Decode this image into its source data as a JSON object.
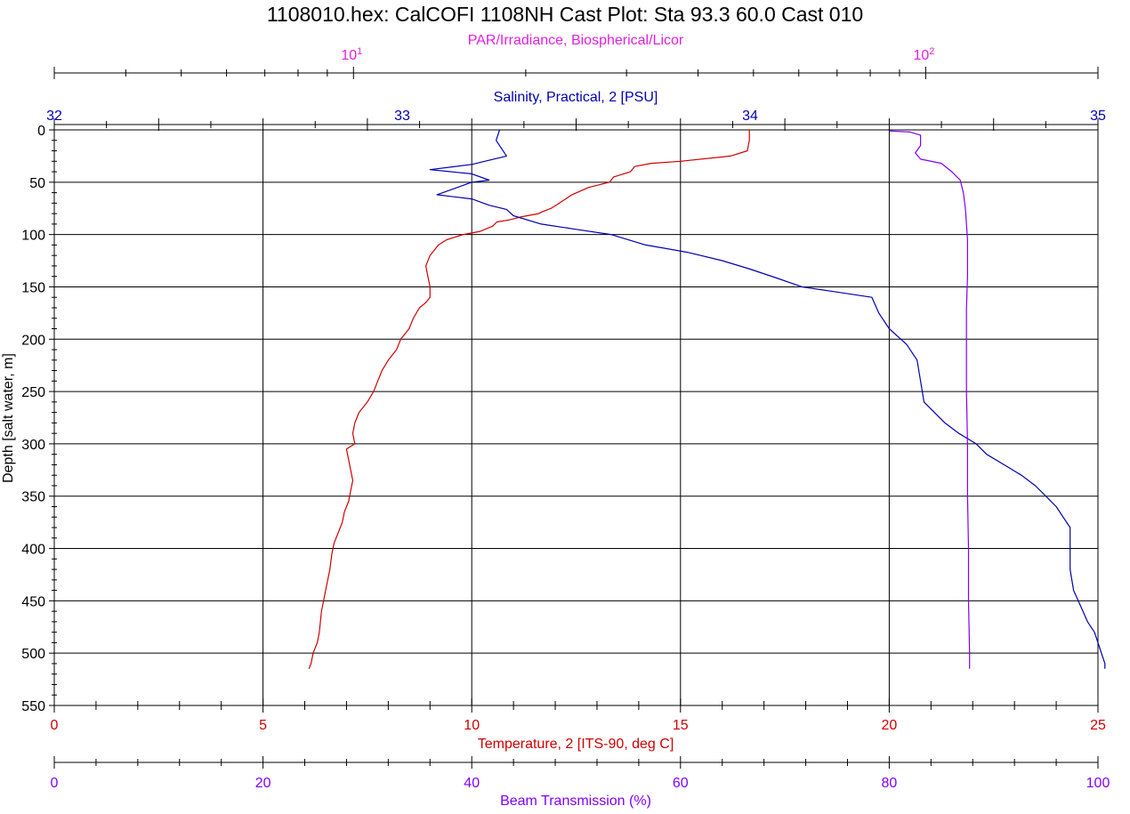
{
  "colors": {
    "par": "#e020e0",
    "salinity": "#0000b0",
    "temperature": "#d00000",
    "beam": "#8000ff",
    "grid": "#000000",
    "text": "#000000"
  },
  "chart_data": {
    "type": "line",
    "title": "1108010.hex: CalCOFI 1108NH Cast Plot:  Sta 93.3 60.0 Cast 010",
    "ylabel": "Depth [salt water, m]",
    "ylim": [
      0,
      550
    ],
    "y_inverted": true,
    "y_ticks": [
      "0",
      "50",
      "100",
      "150",
      "200",
      "250",
      "300",
      "350",
      "400",
      "450",
      "500",
      "550"
    ],
    "grid": true,
    "axes": {
      "par": {
        "label": "PAR/Irradiance, Biospherical/Licor",
        "scale": "log",
        "range": [
          3,
          200
        ],
        "ticks": [
          {
            "base": "10",
            "exp": "1",
            "value": 10
          },
          {
            "base": "10",
            "exp": "2",
            "value": 100
          }
        ],
        "position": "top"
      },
      "salinity": {
        "label": "Salinity, Practical, 2 [PSU]",
        "range": [
          32,
          35
        ],
        "ticks": [
          "32",
          "33",
          "34",
          "35"
        ],
        "position": "top"
      },
      "temperature": {
        "label": "Temperature, 2 [ITS-90, deg C]",
        "range": [
          0,
          25
        ],
        "ticks": [
          "0",
          "5",
          "10",
          "15",
          "20",
          "25"
        ],
        "position": "bottom"
      },
      "beam": {
        "label": "Beam Transmission (%)",
        "range": [
          0,
          100
        ],
        "ticks": [
          "0",
          "20",
          "40",
          "60",
          "80",
          "100"
        ],
        "position": "bottom"
      }
    },
    "series": [
      {
        "axis": "temperature",
        "color": "#d00000",
        "points": [
          [
            16.65,
            0
          ],
          [
            16.65,
            10
          ],
          [
            16.6,
            20
          ],
          [
            16.2,
            25
          ],
          [
            15.0,
            30
          ],
          [
            14.3,
            32
          ],
          [
            13.9,
            35
          ],
          [
            13.8,
            40
          ],
          [
            13.4,
            45
          ],
          [
            13.3,
            50
          ],
          [
            12.8,
            55
          ],
          [
            12.4,
            62
          ],
          [
            12.1,
            70
          ],
          [
            11.9,
            75
          ],
          [
            11.7,
            78
          ],
          [
            11.6,
            80
          ],
          [
            11.2,
            83
          ],
          [
            10.9,
            86
          ],
          [
            10.6,
            88
          ],
          [
            10.5,
            92
          ],
          [
            10.2,
            97
          ],
          [
            9.8,
            100
          ],
          [
            9.4,
            105
          ],
          [
            9.2,
            110
          ],
          [
            9.0,
            120
          ],
          [
            8.9,
            130
          ],
          [
            8.95,
            140
          ],
          [
            9.0,
            150
          ],
          [
            9.0,
            160
          ],
          [
            8.9,
            165
          ],
          [
            8.75,
            170
          ],
          [
            8.6,
            180
          ],
          [
            8.5,
            190
          ],
          [
            8.3,
            200
          ],
          [
            8.2,
            210
          ],
          [
            8.0,
            220
          ],
          [
            7.85,
            230
          ],
          [
            7.75,
            240
          ],
          [
            7.65,
            250
          ],
          [
            7.5,
            260
          ],
          [
            7.3,
            270
          ],
          [
            7.2,
            280
          ],
          [
            7.15,
            290
          ],
          [
            7.2,
            300
          ],
          [
            7.0,
            305
          ],
          [
            7.05,
            315
          ],
          [
            7.1,
            325
          ],
          [
            7.15,
            335
          ],
          [
            7.1,
            345
          ],
          [
            7.05,
            355
          ],
          [
            6.95,
            365
          ],
          [
            6.9,
            375
          ],
          [
            6.8,
            385
          ],
          [
            6.7,
            395
          ],
          [
            6.65,
            405
          ],
          [
            6.6,
            420
          ],
          [
            6.5,
            440
          ],
          [
            6.4,
            460
          ],
          [
            6.35,
            480
          ],
          [
            6.3,
            490
          ],
          [
            6.2,
            500
          ],
          [
            6.15,
            510
          ],
          [
            6.1,
            515
          ]
        ]
      },
      {
        "axis": "salinity",
        "color": "#0000b0",
        "points": [
          [
            33.28,
            0
          ],
          [
            33.27,
            10
          ],
          [
            33.3,
            25
          ],
          [
            33.2,
            33
          ],
          [
            33.08,
            38
          ],
          [
            33.2,
            42
          ],
          [
            33.25,
            48
          ],
          [
            33.2,
            50
          ],
          [
            33.15,
            56
          ],
          [
            33.1,
            62
          ],
          [
            33.2,
            66
          ],
          [
            33.25,
            72
          ],
          [
            33.3,
            76
          ],
          [
            33.32,
            82
          ],
          [
            33.4,
            90
          ],
          [
            33.5,
            95
          ],
          [
            33.6,
            100
          ],
          [
            33.7,
            110
          ],
          [
            33.82,
            117
          ],
          [
            33.92,
            125
          ],
          [
            34.0,
            133
          ],
          [
            34.08,
            142
          ],
          [
            34.15,
            150
          ],
          [
            34.25,
            155
          ],
          [
            34.35,
            160
          ],
          [
            34.37,
            175
          ],
          [
            34.4,
            190
          ],
          [
            34.45,
            205
          ],
          [
            34.48,
            220
          ],
          [
            34.49,
            240
          ],
          [
            34.5,
            260
          ],
          [
            34.56,
            280
          ],
          [
            34.6,
            290
          ],
          [
            34.65,
            300
          ],
          [
            34.68,
            310
          ],
          [
            34.73,
            320
          ],
          [
            34.78,
            330
          ],
          [
            34.82,
            340
          ],
          [
            34.85,
            350
          ],
          [
            34.88,
            360
          ],
          [
            34.9,
            370
          ],
          [
            34.92,
            380
          ],
          [
            34.92,
            400
          ],
          [
            34.92,
            420
          ],
          [
            34.93,
            440
          ],
          [
            34.95,
            455
          ],
          [
            34.97,
            470
          ],
          [
            34.99,
            480
          ],
          [
            35.0,
            490
          ],
          [
            35.01,
            500
          ],
          [
            35.02,
            510
          ],
          [
            35.02,
            515
          ]
        ]
      },
      {
        "axis": "beam",
        "color": "#8000ff",
        "points": [
          [
            80.0,
            1
          ],
          [
            82.0,
            2
          ],
          [
            83.0,
            5
          ],
          [
            83.0,
            15
          ],
          [
            82.5,
            22
          ],
          [
            83.0,
            28
          ],
          [
            85.0,
            32
          ],
          [
            86.0,
            40
          ],
          [
            86.8,
            48
          ],
          [
            87.1,
            60
          ],
          [
            87.3,
            75
          ],
          [
            87.4,
            90
          ],
          [
            87.5,
            105
          ],
          [
            87.5,
            140
          ],
          [
            87.4,
            170
          ],
          [
            87.4,
            200
          ],
          [
            87.4,
            250
          ],
          [
            87.5,
            300
          ],
          [
            87.5,
            350
          ],
          [
            87.6,
            400
          ],
          [
            87.6,
            450
          ],
          [
            87.7,
            500
          ],
          [
            87.7,
            515
          ]
        ]
      }
    ]
  }
}
